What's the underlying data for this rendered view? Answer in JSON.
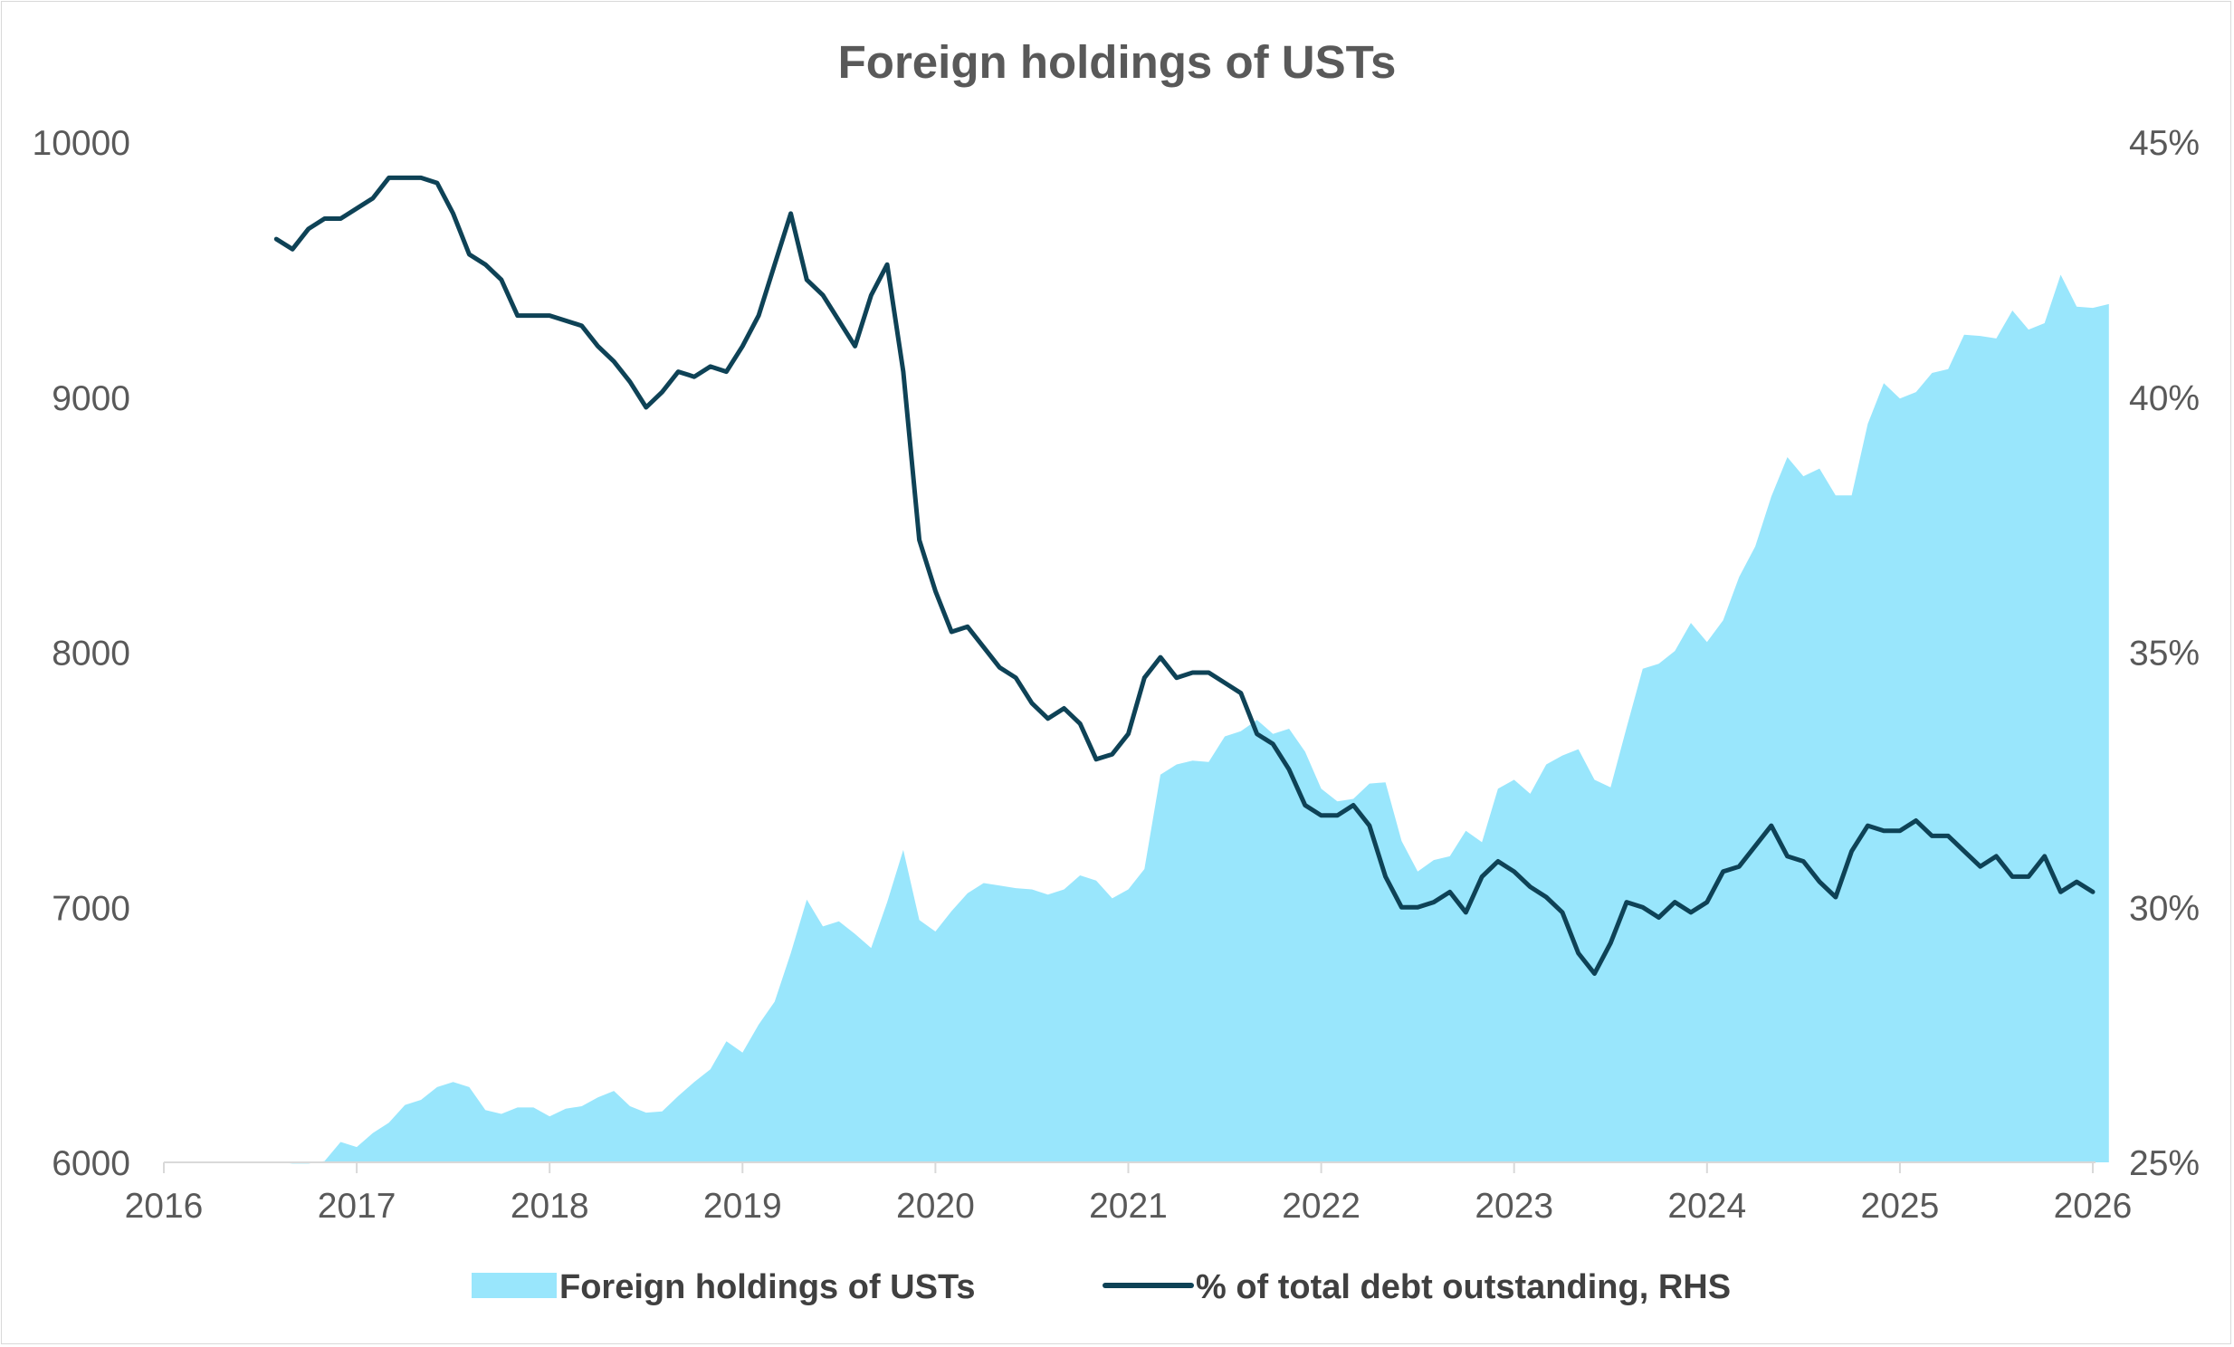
{
  "chart_data": {
    "type": "area",
    "title": "Foreign holdings of USTs",
    "x_axis": {
      "type": "date",
      "range": [
        "2016-01",
        "2026-01"
      ],
      "tick_labels": [
        "2016",
        "2017",
        "2018",
        "2019",
        "2020",
        "2021",
        "2022",
        "2023",
        "2024",
        "2025",
        "2026"
      ]
    },
    "y_left": {
      "range": [
        6000,
        10000
      ],
      "tick_labels": [
        "6000",
        "7000",
        "8000",
        "9000",
        "10000"
      ]
    },
    "y_right": {
      "range": [
        25,
        45
      ],
      "unit": "%",
      "tick_labels": [
        "25%",
        "30%",
        "35%",
        "40%",
        "45%"
      ]
    },
    "grid": false,
    "legend": "bottom",
    "series": [
      {
        "name": "Foreign holdings of USTs",
        "kind": "area",
        "axis": "left",
        "color": "#99E6FC",
        "points": [
          [
            "2016-01",
            6002
          ],
          [
            "2016-02",
            6002
          ],
          [
            "2016-03",
            6002
          ],
          [
            "2016-04",
            6002
          ],
          [
            "2016-05",
            6002
          ],
          [
            "2016-06",
            6002
          ],
          [
            "2016-07",
            6002
          ],
          [
            "2016-08",
            6002
          ],
          [
            "2016-09",
            5995
          ],
          [
            "2016-10",
            5995
          ],
          [
            "2016-11",
            6005
          ],
          [
            "2016-12",
            6080
          ],
          [
            "2017-01",
            6060
          ],
          [
            "2017-02",
            6115
          ],
          [
            "2017-03",
            6155
          ],
          [
            "2017-04",
            6225
          ],
          [
            "2017-05",
            6245
          ],
          [
            "2017-06",
            6295
          ],
          [
            "2017-07",
            6315
          ],
          [
            "2017-08",
            6295
          ],
          [
            "2017-09",
            6205
          ],
          [
            "2017-10",
            6190
          ],
          [
            "2017-11",
            6215
          ],
          [
            "2017-12",
            6215
          ],
          [
            "2018-01",
            6180
          ],
          [
            "2018-02",
            6210
          ],
          [
            "2018-03",
            6220
          ],
          [
            "2018-04",
            6255
          ],
          [
            "2018-05",
            6280
          ],
          [
            "2018-06",
            6220
          ],
          [
            "2018-07",
            6195
          ],
          [
            "2018-08",
            6200
          ],
          [
            "2018-09",
            6260
          ],
          [
            "2018-10",
            6315
          ],
          [
            "2018-11",
            6365
          ],
          [
            "2018-12",
            6475
          ],
          [
            "2019-01",
            6430
          ],
          [
            "2019-02",
            6540
          ],
          [
            "2019-03",
            6630
          ],
          [
            "2019-04",
            6820
          ],
          [
            "2019-05",
            7030
          ],
          [
            "2019-06",
            6925
          ],
          [
            "2019-07",
            6945
          ],
          [
            "2019-08",
            6895
          ],
          [
            "2019-09",
            6840
          ],
          [
            "2019-10",
            7020
          ],
          [
            "2019-11",
            7225
          ],
          [
            "2019-12",
            6950
          ],
          [
            "2020-01",
            6905
          ],
          [
            "2020-02",
            6985
          ],
          [
            "2020-03",
            7055
          ],
          [
            "2020-04",
            7095
          ],
          [
            "2020-05",
            7085
          ],
          [
            "2020-06",
            7075
          ],
          [
            "2020-07",
            7070
          ],
          [
            "2020-08",
            7050
          ],
          [
            "2020-09",
            7070
          ],
          [
            "2020-10",
            7125
          ],
          [
            "2020-11",
            7105
          ],
          [
            "2020-12",
            7035
          ],
          [
            "2021-01",
            7070
          ],
          [
            "2021-02",
            7150
          ],
          [
            "2021-03",
            7520
          ],
          [
            "2021-04",
            7560
          ],
          [
            "2021-05",
            7575
          ],
          [
            "2021-06",
            7570
          ],
          [
            "2021-07",
            7670
          ],
          [
            "2021-08",
            7690
          ],
          [
            "2021-09",
            7735
          ],
          [
            "2021-10",
            7680
          ],
          [
            "2021-11",
            7700
          ],
          [
            "2021-12",
            7610
          ],
          [
            "2022-01",
            7465
          ],
          [
            "2022-02",
            7415
          ],
          [
            "2022-03",
            7425
          ],
          [
            "2022-04",
            7485
          ],
          [
            "2022-05",
            7490
          ],
          [
            "2022-06",
            7260
          ],
          [
            "2022-07",
            7140
          ],
          [
            "2022-08",
            7185
          ],
          [
            "2022-09",
            7200
          ],
          [
            "2022-10",
            7300
          ],
          [
            "2022-11",
            7255
          ],
          [
            "2022-12",
            7465
          ],
          [
            "2023-01",
            7500
          ],
          [
            "2023-02",
            7445
          ],
          [
            "2023-03",
            7560
          ],
          [
            "2023-04",
            7595
          ],
          [
            "2023-05",
            7620
          ],
          [
            "2023-06",
            7500
          ],
          [
            "2023-07",
            7470
          ],
          [
            "2023-08",
            7705
          ],
          [
            "2023-09",
            7935
          ],
          [
            "2023-10",
            7955
          ],
          [
            "2023-11",
            8005
          ],
          [
            "2023-12",
            8115
          ],
          [
            "2024-01",
            8040
          ],
          [
            "2024-02",
            8125
          ],
          [
            "2024-03",
            8295
          ],
          [
            "2024-04",
            8415
          ],
          [
            "2024-05",
            8610
          ],
          [
            "2024-06",
            8765
          ],
          [
            "2024-07",
            8690
          ],
          [
            "2024-08",
            8720
          ],
          [
            "2024-09",
            8615
          ],
          [
            "2024-10",
            8615
          ],
          [
            "2024-11",
            8895
          ],
          [
            "2024-12",
            9055
          ],
          [
            "2025-01",
            8995
          ],
          [
            "2025-02",
            9020
          ],
          [
            "2025-03",
            9095
          ],
          [
            "2025-04",
            9110
          ],
          [
            "2025-05",
            9245
          ],
          [
            "2025-06",
            9240
          ],
          [
            "2025-07",
            9230
          ],
          [
            "2025-08",
            9340
          ],
          [
            "2025-09",
            9265
          ],
          [
            "2025-10",
            9290
          ],
          [
            "2025-11",
            9480
          ],
          [
            "2025-12",
            9355
          ],
          [
            "2026-01",
            9350
          ],
          [
            "2026-02",
            9365
          ]
        ]
      },
      {
        "name": "% of total debt outstanding, RHS",
        "kind": "line",
        "axis": "right",
        "color": "#0E4256",
        "points": [
          [
            "2016-08",
            43.1
          ],
          [
            "2016-09",
            42.9
          ],
          [
            "2016-10",
            43.3
          ],
          [
            "2016-11",
            43.5
          ],
          [
            "2016-12",
            43.5
          ],
          [
            "2017-01",
            43.7
          ],
          [
            "2017-02",
            43.9
          ],
          [
            "2017-03",
            44.3
          ],
          [
            "2017-04",
            44.3
          ],
          [
            "2017-05",
            44.3
          ],
          [
            "2017-06",
            44.2
          ],
          [
            "2017-07",
            43.6
          ],
          [
            "2017-08",
            42.8
          ],
          [
            "2017-09",
            42.6
          ],
          [
            "2017-10",
            42.3
          ],
          [
            "2017-11",
            41.6
          ],
          [
            "2017-12",
            41.6
          ],
          [
            "2018-01",
            41.6
          ],
          [
            "2018-02",
            41.5
          ],
          [
            "2018-03",
            41.4
          ],
          [
            "2018-04",
            41.0
          ],
          [
            "2018-05",
            40.7
          ],
          [
            "2018-06",
            40.3
          ],
          [
            "2018-07",
            39.8
          ],
          [
            "2018-08",
            40.1
          ],
          [
            "2018-09",
            40.5
          ],
          [
            "2018-10",
            40.4
          ],
          [
            "2018-11",
            40.6
          ],
          [
            "2018-12",
            40.5
          ],
          [
            "2019-01",
            41.0
          ],
          [
            "2019-02",
            41.6
          ],
          [
            "2019-03",
            42.6
          ],
          [
            "2019-04",
            43.6
          ],
          [
            "2019-05",
            42.3
          ],
          [
            "2019-06",
            42.0
          ],
          [
            "2019-07",
            41.5
          ],
          [
            "2019-08",
            41.0
          ],
          [
            "2019-09",
            42.0
          ],
          [
            "2019-10",
            42.6
          ],
          [
            "2019-11",
            40.5
          ],
          [
            "2019-12",
            37.2
          ],
          [
            "2020-01",
            36.2
          ],
          [
            "2020-02",
            35.4
          ],
          [
            "2020-03",
            35.5
          ],
          [
            "2020-04",
            35.1
          ],
          [
            "2020-05",
            34.7
          ],
          [
            "2020-06",
            34.5
          ],
          [
            "2020-07",
            34.0
          ],
          [
            "2020-08",
            33.7
          ],
          [
            "2020-09",
            33.9
          ],
          [
            "2020-10",
            33.6
          ],
          [
            "2020-11",
            32.9
          ],
          [
            "2020-12",
            33.0
          ],
          [
            "2021-01",
            33.4
          ],
          [
            "2021-02",
            34.5
          ],
          [
            "2021-03",
            34.9
          ],
          [
            "2021-04",
            34.5
          ],
          [
            "2021-05",
            34.6
          ],
          [
            "2021-06",
            34.6
          ],
          [
            "2021-07",
            34.4
          ],
          [
            "2021-08",
            34.2
          ],
          [
            "2021-09",
            33.4
          ],
          [
            "2021-10",
            33.2
          ],
          [
            "2021-11",
            32.7
          ],
          [
            "2021-12",
            32.0
          ],
          [
            "2022-01",
            31.8
          ],
          [
            "2022-02",
            31.8
          ],
          [
            "2022-03",
            32.0
          ],
          [
            "2022-04",
            31.6
          ],
          [
            "2022-05",
            30.6
          ],
          [
            "2022-06",
            30.0
          ],
          [
            "2022-07",
            30.0
          ],
          [
            "2022-08",
            30.1
          ],
          [
            "2022-09",
            30.3
          ],
          [
            "2022-10",
            29.9
          ],
          [
            "2022-11",
            30.6
          ],
          [
            "2022-12",
            30.9
          ],
          [
            "2023-01",
            30.7
          ],
          [
            "2023-02",
            30.4
          ],
          [
            "2023-03",
            30.2
          ],
          [
            "2023-04",
            29.9
          ],
          [
            "2023-05",
            29.1
          ],
          [
            "2023-06",
            28.7
          ],
          [
            "2023-07",
            29.3
          ],
          [
            "2023-08",
            30.1
          ],
          [
            "2023-09",
            30.0
          ],
          [
            "2023-10",
            29.8
          ],
          [
            "2023-11",
            30.1
          ],
          [
            "2023-12",
            29.9
          ],
          [
            "2024-01",
            30.1
          ],
          [
            "2024-02",
            30.7
          ],
          [
            "2024-03",
            30.8
          ],
          [
            "2024-04",
            31.2
          ],
          [
            "2024-05",
            31.6
          ],
          [
            "2024-06",
            31.0
          ],
          [
            "2024-07",
            30.9
          ],
          [
            "2024-08",
            30.5
          ],
          [
            "2024-09",
            30.2
          ],
          [
            "2024-10",
            31.1
          ],
          [
            "2024-11",
            31.6
          ],
          [
            "2024-12",
            31.5
          ],
          [
            "2025-01",
            31.5
          ],
          [
            "2025-02",
            31.7
          ],
          [
            "2025-03",
            31.4
          ],
          [
            "2025-04",
            31.4
          ],
          [
            "2025-05",
            31.1
          ],
          [
            "2025-06",
            30.8
          ],
          [
            "2025-07",
            31.0
          ],
          [
            "2025-08",
            30.6
          ],
          [
            "2025-09",
            30.6
          ],
          [
            "2025-10",
            31.0
          ],
          [
            "2025-11",
            30.3
          ],
          [
            "2025-12",
            30.5
          ],
          [
            "2026-01",
            30.3
          ]
        ]
      }
    ]
  }
}
